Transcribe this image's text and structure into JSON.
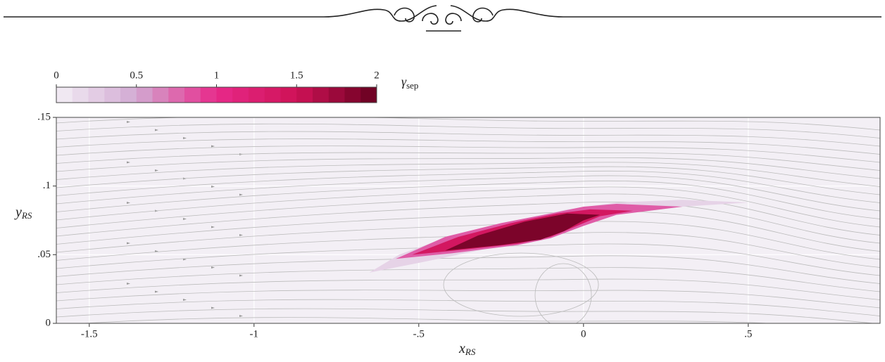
{
  "chart_data": {
    "type": "contour",
    "xlabel": "x",
    "xlabel_sub": "RS",
    "ylabel": "y",
    "ylabel_sub": "RS",
    "xlim": [
      -1.6,
      0.9
    ],
    "ylim": [
      0,
      0.15
    ],
    "xticks": [
      {
        "value": -1.5,
        "label": "-1.5"
      },
      {
        "value": -1,
        "label": "-1"
      },
      {
        "value": -0.5,
        "label": "-.5"
      },
      0,
      {
        "value": 0.5,
        "label": ".5"
      }
    ],
    "yticks": [
      0,
      {
        "value": 0.05,
        "label": ".05"
      },
      {
        "value": 0.1,
        "label": ".1"
      },
      {
        "value": 0.15,
        "label": ".15"
      }
    ],
    "grid": true,
    "colorbar": {
      "label": "γ",
      "label_sub": "sep",
      "clim": [
        0,
        2
      ],
      "ticks": [
        0,
        0.5,
        1,
        1.5,
        2
      ],
      "steps": 20,
      "colors": [
        "#f3eff5",
        "#d2a9d2",
        "#e7298a",
        "#ce1256",
        "#67001f"
      ]
    },
    "contours": [
      {
        "level": 0.2,
        "points": [
          [
            -0.65,
            0.037
          ],
          [
            -0.5,
            0.044
          ],
          [
            -0.3,
            0.054
          ],
          [
            -0.1,
            0.067
          ],
          [
            0.1,
            0.079
          ],
          [
            0.3,
            0.085
          ],
          [
            0.5,
            0.088
          ],
          [
            0.3,
            0.09
          ],
          [
            0.1,
            0.088
          ],
          [
            -0.05,
            0.083
          ],
          [
            -0.2,
            0.075
          ],
          [
            -0.4,
            0.064
          ],
          [
            -0.56,
            0.05
          ]
        ]
      },
      {
        "level": 0.8,
        "points": [
          [
            -0.57,
            0.047
          ],
          [
            -0.4,
            0.051
          ],
          [
            -0.2,
            0.057
          ],
          [
            -0.1,
            0.062
          ],
          [
            0,
            0.071
          ],
          [
            0.1,
            0.079
          ],
          [
            0.3,
            0.085
          ],
          [
            0.1,
            0.087
          ],
          [
            0,
            0.085
          ],
          [
            -0.1,
            0.08
          ],
          [
            -0.25,
            0.073
          ],
          [
            -0.42,
            0.063
          ]
        ]
      },
      {
        "level": 1.4,
        "points": [
          [
            -0.52,
            0.05
          ],
          [
            -0.35,
            0.054
          ],
          [
            -0.2,
            0.058
          ],
          [
            -0.1,
            0.063
          ],
          [
            -0.02,
            0.071
          ],
          [
            0.05,
            0.078
          ],
          [
            0.15,
            0.082
          ],
          [
            0.02,
            0.083
          ],
          [
            -0.08,
            0.08
          ],
          [
            -0.22,
            0.073
          ],
          [
            -0.38,
            0.063
          ]
        ]
      },
      {
        "level": 1.9,
        "points": [
          [
            -0.42,
            0.053
          ],
          [
            -0.25,
            0.057
          ],
          [
            -0.13,
            0.061
          ],
          [
            -0.06,
            0.067
          ],
          [
            0.0,
            0.075
          ],
          [
            0.05,
            0.079
          ],
          [
            -0.05,
            0.08
          ],
          [
            -0.18,
            0.074
          ],
          [
            -0.32,
            0.064
          ]
        ]
      }
    ]
  }
}
